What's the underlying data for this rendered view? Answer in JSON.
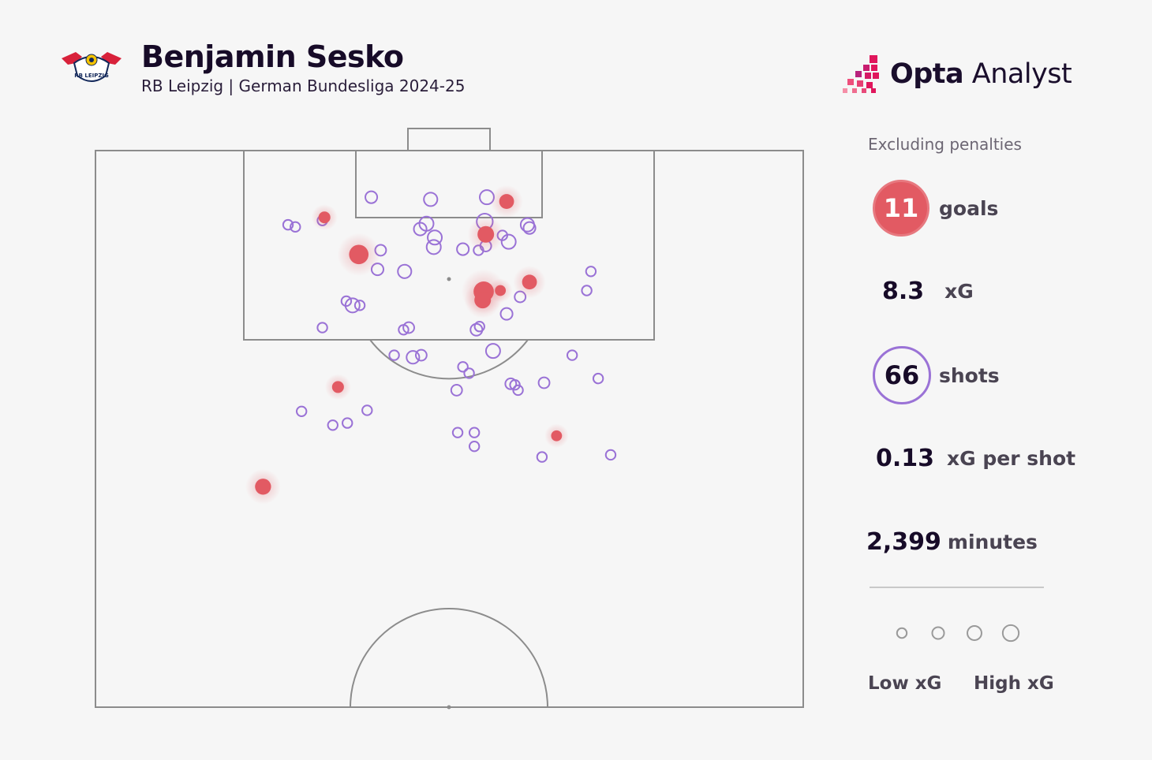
{
  "header": {
    "player": "Benjamin Sesko",
    "subtitle": "RB Leipzig | German Bundesliga 2024-25",
    "club_crest_text": "RB LEIPZIG"
  },
  "brand": {
    "name_bold": "Opta",
    "name_light": " Analyst"
  },
  "stats": {
    "note": "Excluding penalties",
    "goals_value": "11",
    "goals_label": "goals",
    "xg_value": "8.3",
    "xg_label": "xG",
    "shots_value": "66",
    "shots_label": "shots",
    "xg_per_shot_value": "0.13",
    "xg_per_shot_label": "xG per shot",
    "minutes_value": "2,399",
    "minutes_label": "minutes"
  },
  "legend": {
    "low_label": "Low xG",
    "high_label": "High xG"
  },
  "colors": {
    "goal": "#e25a63",
    "shot": "#9a72d6",
    "pitch_line": "#8c8c8c",
    "background": "#f6f6f6"
  },
  "chart_data": {
    "type": "scatter",
    "description_units": "x: metres from left touchline (0-68), y: metres from goal line (0-52.5), xg: expected goals",
    "x_range": [
      0,
      68
    ],
    "y_range": [
      0,
      52.5
    ],
    "goals": [
      {
        "x": 39.5,
        "y": 4.8,
        "xg": 0.16
      },
      {
        "x": 37.5,
        "y": 7.9,
        "xg": 0.22
      },
      {
        "x": 25.3,
        "y": 9.8,
        "xg": 0.34
      },
      {
        "x": 22.0,
        "y": 6.3,
        "xg": 0.08
      },
      {
        "x": 37.3,
        "y": 13.3,
        "xg": 0.38
      },
      {
        "x": 37.2,
        "y": 14.1,
        "xg": 0.22
      },
      {
        "x": 41.7,
        "y": 12.4,
        "xg": 0.16
      },
      {
        "x": 38.9,
        "y": 13.2,
        "xg": 0.06
      },
      {
        "x": 23.3,
        "y": 22.3,
        "xg": 0.08
      },
      {
        "x": 44.3,
        "y": 26.9,
        "xg": 0.06
      },
      {
        "x": 16.1,
        "y": 31.7,
        "xg": 0.2
      }
    ],
    "shots": [
      {
        "x": 26.5,
        "y": 4.4,
        "xg": 0.08
      },
      {
        "x": 32.2,
        "y": 4.6,
        "xg": 0.12
      },
      {
        "x": 37.6,
        "y": 4.4,
        "xg": 0.14
      },
      {
        "x": 18.5,
        "y": 7.0,
        "xg": 0.04
      },
      {
        "x": 21.8,
        "y": 6.6,
        "xg": 0.04
      },
      {
        "x": 31.8,
        "y": 6.9,
        "xg": 0.14
      },
      {
        "x": 31.2,
        "y": 7.4,
        "xg": 0.1
      },
      {
        "x": 37.4,
        "y": 6.7,
        "xg": 0.2
      },
      {
        "x": 41.5,
        "y": 7.0,
        "xg": 0.12
      },
      {
        "x": 41.7,
        "y": 7.3,
        "xg": 0.08
      },
      {
        "x": 32.6,
        "y": 8.2,
        "xg": 0.14
      },
      {
        "x": 39.1,
        "y": 8.0,
        "xg": 0.04
      },
      {
        "x": 32.5,
        "y": 9.1,
        "xg": 0.14
      },
      {
        "x": 35.3,
        "y": 9.3,
        "xg": 0.08
      },
      {
        "x": 36.8,
        "y": 9.4,
        "xg": 0.04
      },
      {
        "x": 37.5,
        "y": 9.0,
        "xg": 0.06
      },
      {
        "x": 39.7,
        "y": 8.6,
        "xg": 0.14
      },
      {
        "x": 27.4,
        "y": 9.4,
        "xg": 0.06
      },
      {
        "x": 27.1,
        "y": 11.2,
        "xg": 0.08
      },
      {
        "x": 29.7,
        "y": 11.4,
        "xg": 0.12
      },
      {
        "x": 47.6,
        "y": 11.4,
        "xg": 0.04
      },
      {
        "x": 40.8,
        "y": 13.8,
        "xg": 0.06
      },
      {
        "x": 47.2,
        "y": 13.2,
        "xg": 0.04
      },
      {
        "x": 24.1,
        "y": 14.2,
        "xg": 0.04
      },
      {
        "x": 24.7,
        "y": 14.6,
        "xg": 0.14
      },
      {
        "x": 25.4,
        "y": 14.6,
        "xg": 0.04
      },
      {
        "x": 39.5,
        "y": 15.4,
        "xg": 0.08
      },
      {
        "x": 21.8,
        "y": 16.7,
        "xg": 0.04
      },
      {
        "x": 29.6,
        "y": 16.9,
        "xg": 0.04
      },
      {
        "x": 30.1,
        "y": 16.7,
        "xg": 0.06
      },
      {
        "x": 36.6,
        "y": 16.9,
        "xg": 0.08
      },
      {
        "x": 36.9,
        "y": 16.6,
        "xg": 0.04
      },
      {
        "x": 38.2,
        "y": 18.9,
        "xg": 0.14
      },
      {
        "x": 28.7,
        "y": 19.3,
        "xg": 0.04
      },
      {
        "x": 30.5,
        "y": 19.5,
        "xg": 0.1
      },
      {
        "x": 31.3,
        "y": 19.3,
        "xg": 0.06
      },
      {
        "x": 45.8,
        "y": 19.3,
        "xg": 0.04
      },
      {
        "x": 35.3,
        "y": 20.4,
        "xg": 0.04
      },
      {
        "x": 35.9,
        "y": 21.0,
        "xg": 0.04
      },
      {
        "x": 39.9,
        "y": 22.0,
        "xg": 0.06
      },
      {
        "x": 40.3,
        "y": 22.1,
        "xg": 0.04
      },
      {
        "x": 43.1,
        "y": 21.9,
        "xg": 0.06
      },
      {
        "x": 48.3,
        "y": 21.5,
        "xg": 0.04
      },
      {
        "x": 34.7,
        "y": 22.6,
        "xg": 0.06
      },
      {
        "x": 40.6,
        "y": 22.6,
        "xg": 0.04
      },
      {
        "x": 19.8,
        "y": 24.6,
        "xg": 0.04
      },
      {
        "x": 26.1,
        "y": 24.5,
        "xg": 0.04
      },
      {
        "x": 22.8,
        "y": 25.9,
        "xg": 0.04
      },
      {
        "x": 24.2,
        "y": 25.7,
        "xg": 0.04
      },
      {
        "x": 34.8,
        "y": 26.6,
        "xg": 0.04
      },
      {
        "x": 36.4,
        "y": 26.6,
        "xg": 0.04
      },
      {
        "x": 36.4,
        "y": 27.9,
        "xg": 0.04
      },
      {
        "x": 42.9,
        "y": 28.9,
        "xg": 0.04
      },
      {
        "x": 49.5,
        "y": 28.7,
        "xg": 0.04
      },
      {
        "x": 19.2,
        "y": 7.2,
        "xg": 0.04
      }
    ],
    "legend_xg_levels": [
      0.04,
      0.08,
      0.14,
      0.2
    ]
  }
}
